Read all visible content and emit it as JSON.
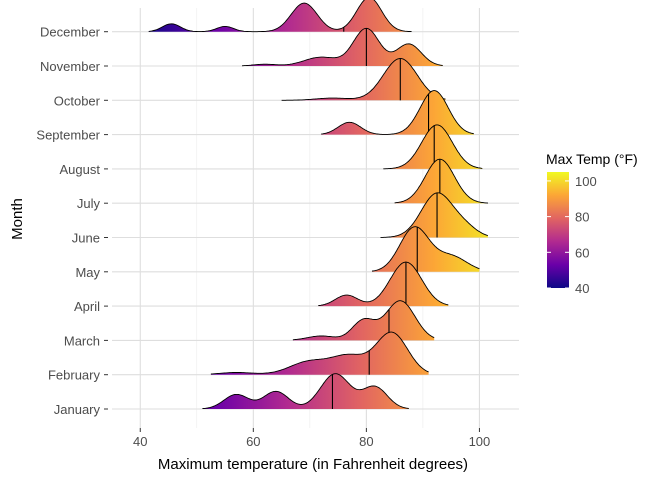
{
  "chart_data": {
    "type": "ridgeline",
    "xlabel": "Maximum temperature (in Fahrenheit degrees)",
    "ylabel": "Month",
    "xlim": [
      35,
      107
    ],
    "x_ticks": [
      40,
      60,
      80,
      100
    ],
    "grid": true,
    "legend": {
      "title": "Max Temp (°F)",
      "placement": "right",
      "min": 40,
      "max": 105,
      "ticks": [
        40,
        60,
        80,
        100
      ]
    },
    "palette": [
      "#0d0887",
      "#6a00a8",
      "#b12a90",
      "#e16462",
      "#fca636",
      "#f0f921"
    ],
    "months": [
      {
        "name": "January",
        "median": 74,
        "peaks": [
          [
            57,
            2.2,
            0.33
          ],
          [
            64,
            2.2,
            0.4
          ],
          [
            74.5,
            2.6,
            0.8
          ],
          [
            81.5,
            2.2,
            0.5
          ]
        ],
        "range": [
          51,
          87.5
        ]
      },
      {
        "name": "February",
        "median": 80.5,
        "peaks": [
          [
            57,
            3,
            0.05
          ],
          [
            70,
            3.5,
            0.3
          ],
          [
            77,
            3,
            0.4
          ],
          [
            84.5,
            2.8,
            0.95
          ]
        ],
        "range": [
          52.5,
          91
        ]
      },
      {
        "name": "March",
        "median": 84,
        "peaks": [
          [
            72,
            2.5,
            0.1
          ],
          [
            79.5,
            2,
            0.45
          ],
          [
            86,
            2.6,
            0.9
          ]
        ],
        "range": [
          67,
          92
        ]
      },
      {
        "name": "April",
        "median": 87,
        "peaks": [
          [
            76.5,
            2,
            0.25
          ],
          [
            87,
            2.8,
            1.0
          ]
        ],
        "range": [
          71.5,
          94.5
        ]
      },
      {
        "name": "May",
        "median": 89,
        "peaks": [
          [
            88.5,
            2.6,
            1.0
          ],
          [
            95,
            2.8,
            0.35
          ]
        ],
        "range": [
          81,
          100
        ]
      },
      {
        "name": "June",
        "median": 92.5,
        "peaks": [
          [
            92.5,
            2.8,
            1.0
          ],
          [
            97.5,
            2.2,
            0.2
          ]
        ],
        "range": [
          82.5,
          101.5
        ]
      },
      {
        "name": "July",
        "median": 93,
        "peaks": [
          [
            93,
            2.6,
            1.0
          ]
        ],
        "range": [
          85,
          101.5
        ]
      },
      {
        "name": "August",
        "median": 92,
        "peaks": [
          [
            92.5,
            2.7,
            1.0
          ]
        ],
        "range": [
          83,
          100.5
        ]
      },
      {
        "name": "September",
        "median": 91,
        "peaks": [
          [
            77,
            2,
            0.28
          ],
          [
            92,
            2.5,
            1.0
          ]
        ],
        "range": [
          72,
          99
        ]
      },
      {
        "name": "October",
        "median": 86,
        "peaks": [
          [
            74,
            3,
            0.05
          ],
          [
            86,
            3,
            0.95
          ]
        ],
        "range": [
          65,
          94
        ]
      },
      {
        "name": "November",
        "median": 80,
        "peaks": [
          [
            62,
            2,
            0.04
          ],
          [
            72,
            3,
            0.2
          ],
          [
            80,
            2.3,
            0.85
          ],
          [
            87.5,
            2.2,
            0.5
          ]
        ],
        "range": [
          58,
          93.5
        ]
      },
      {
        "name": "December",
        "median": 76,
        "peaks": [
          [
            45.5,
            1.6,
            0.18
          ],
          [
            55,
            1.5,
            0.12
          ],
          [
            69,
            2.3,
            0.65
          ],
          [
            80.5,
            2.2,
            0.78
          ]
        ],
        "range": [
          41.5,
          88
        ]
      }
    ]
  }
}
